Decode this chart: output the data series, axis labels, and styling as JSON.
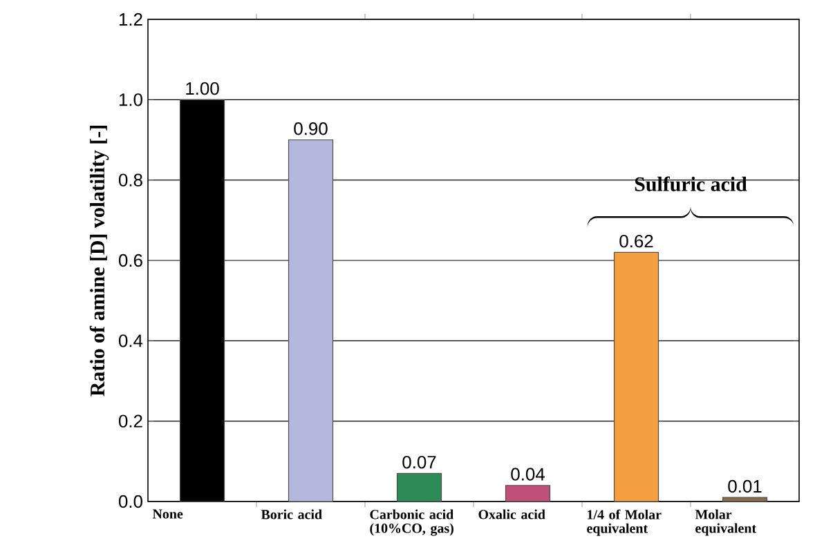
{
  "chart_data": {
    "type": "bar",
    "ylabel": "Ratio of amine [D] volatility [-]",
    "categories": [
      "None",
      "Boric acid",
      "Carbonic acid (10%CO, gas)",
      "Oxalic acid",
      "1/4 of Molar equivalent",
      "Molar equivalent"
    ],
    "values": [
      1.0,
      0.9,
      0.07,
      0.04,
      0.62,
      0.01
    ],
    "value_labels": [
      "1.00",
      "0.90",
      "0.07",
      "0.04",
      "0.62",
      "0.01"
    ],
    "colors": [
      "#000000",
      "#b4b8dc",
      "#2e8b57",
      "#c0507a",
      "#f5a040",
      "#8b6b4a"
    ],
    "ylim": [
      0,
      1.2
    ],
    "yticks": [
      {
        "value": 0,
        "label": "0.0"
      },
      {
        "value": 0.2,
        "label": "0.2"
      },
      {
        "value": 0.4,
        "label": "0.4"
      },
      {
        "value": 0.6,
        "label": "0.6"
      },
      {
        "value": 0.8,
        "label": "0.8"
      },
      {
        "value": 1.0,
        "label": "1.0"
      },
      {
        "value": 1.2,
        "label": "1.2"
      }
    ],
    "grid": "y",
    "annotations": [
      "Sulfuric acid"
    ]
  }
}
